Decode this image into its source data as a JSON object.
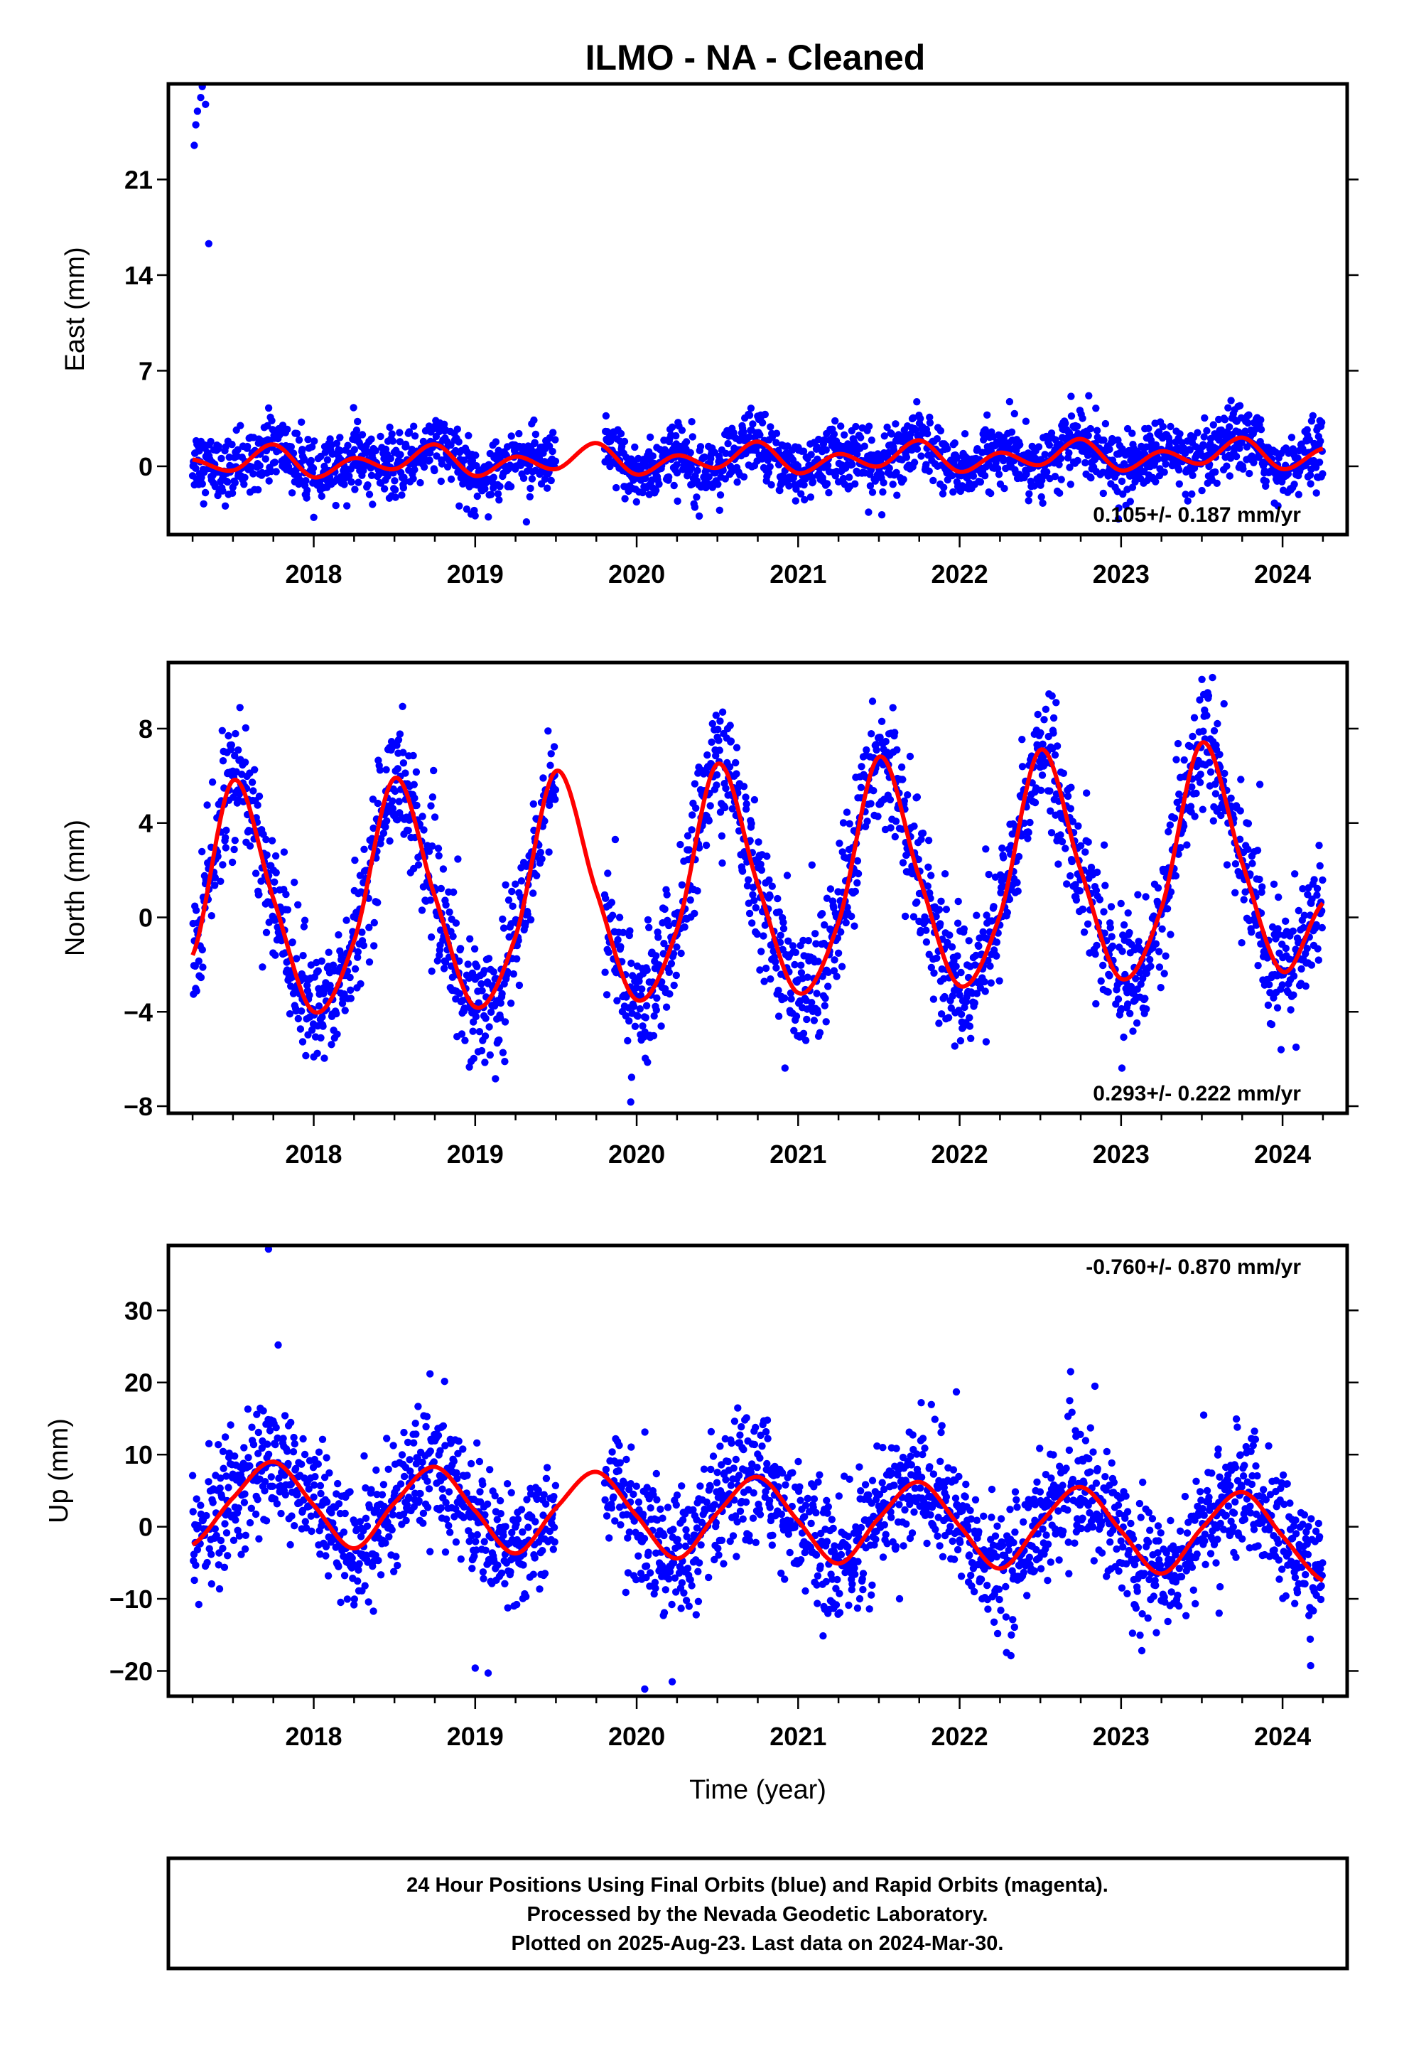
{
  "title": "ILMO  - NA - Cleaned",
  "colors": {
    "final_orbits": "#0000ff",
    "model": "#ff0000",
    "frame": "#000000"
  },
  "footer": {
    "lines": [
      "24 Hour Positions Using Final Orbits (blue) and Rapid Orbits (magenta).",
      "Processed by the Nevada Geodetic Laboratory.",
      "Plotted on 2025-Aug-23. Last data on 2024-Mar-30."
    ]
  },
  "chart_data": [
    {
      "type": "scatter",
      "component": "east",
      "ylabel": "East (mm)",
      "xlabel": "",
      "xlim": [
        2017.1,
        2024.4
      ],
      "ylim": [
        -5,
        28
      ],
      "xticks": [
        2018,
        2019,
        2020,
        2021,
        2022,
        2023,
        2024
      ],
      "yticks": [
        0,
        7,
        14,
        21
      ],
      "rate_label": "0.105+/- 0.187 mm/yr",
      "rate_position": "bottom-right",
      "data_start": 2017.25,
      "data_end": 2024.25,
      "data_gap": [
        2019.5,
        2019.8
      ],
      "outliers": [
        [
          2017.26,
          23.5
        ],
        [
          2017.27,
          25.0
        ],
        [
          2017.28,
          26.0
        ],
        [
          2017.3,
          27.0
        ],
        [
          2017.31,
          27.8
        ],
        [
          2017.33,
          26.5
        ],
        [
          2017.35,
          16.3
        ]
      ],
      "model": {
        "x": [
          2017.25,
          2017.5,
          2017.75,
          2018.0,
          2018.25,
          2018.5,
          2018.75,
          2019.0,
          2019.25,
          2019.5,
          2019.75,
          2020.0,
          2020.25,
          2020.5,
          2020.75,
          2021.0,
          2021.25,
          2021.5,
          2021.75,
          2022.0,
          2022.25,
          2022.5,
          2022.75,
          2023.0,
          2023.25,
          2023.5,
          2023.75,
          2024.0,
          2024.25
        ],
        "y": [
          0.5,
          -0.3,
          1.6,
          -0.8,
          0.6,
          -0.2,
          1.6,
          -0.7,
          0.7,
          -0.2,
          1.7,
          -0.6,
          0.8,
          -0.1,
          1.8,
          -0.5,
          0.9,
          0.0,
          1.9,
          -0.4,
          1.0,
          0.1,
          2.0,
          -0.3,
          1.1,
          0.2,
          2.1,
          -0.2,
          1.3
        ]
      }
    },
    {
      "type": "scatter",
      "component": "north",
      "ylabel": "North (mm)",
      "xlabel": "",
      "xlim": [
        2017.1,
        2024.4
      ],
      "ylim": [
        -8.3,
        10.8
      ],
      "xticks": [
        2018,
        2019,
        2020,
        2021,
        2022,
        2023,
        2024
      ],
      "yticks": [
        -8,
        -4,
        0,
        4,
        8
      ],
      "rate_label": "0.293+/- 0.222 mm/yr",
      "rate_position": "bottom-right",
      "data_start": 2017.25,
      "data_end": 2024.25,
      "data_gap": [
        2019.5,
        2019.8
      ],
      "outliers": [],
      "model": {
        "x": [
          2017.25,
          2017.5,
          2017.75,
          2018.0,
          2018.25,
          2018.5,
          2018.75,
          2019.0,
          2019.25,
          2019.5,
          2019.75,
          2020.0,
          2020.25,
          2020.5,
          2020.75,
          2021.0,
          2021.25,
          2021.5,
          2021.75,
          2022.0,
          2022.25,
          2022.5,
          2022.75,
          2023.0,
          2023.25,
          2023.5,
          2023.75,
          2024.0,
          2024.25
        ],
        "y": [
          -1.6,
          5.8,
          0.8,
          -4.0,
          -1.0,
          5.9,
          0.9,
          -3.8,
          -0.8,
          6.2,
          1.1,
          -3.5,
          -0.5,
          6.5,
          1.4,
          -3.2,
          -0.2,
          6.8,
          1.7,
          -2.9,
          0.1,
          7.1,
          2.0,
          -2.6,
          0.4,
          7.4,
          2.3,
          -2.3,
          0.6
        ]
      }
    },
    {
      "type": "scatter",
      "component": "up",
      "ylabel": "Up (mm)",
      "xlabel": "Time (year)",
      "xlim": [
        2017.1,
        2024.4
      ],
      "ylim": [
        -23.5,
        39
      ],
      "xticks": [
        2018,
        2019,
        2020,
        2021,
        2022,
        2023,
        2024
      ],
      "yticks": [
        -20,
        -10,
        0,
        10,
        20,
        30
      ],
      "rate_label": "-0.760+/- 0.870 mm/yr",
      "rate_position": "top-right",
      "data_start": 2017.25,
      "data_end": 2024.25,
      "data_gap": [
        2019.5,
        2019.8
      ],
      "outliers": [
        [
          2017.72,
          38.5
        ],
        [
          2017.78,
          25.2
        ],
        [
          2018.72,
          21.2
        ],
        [
          2021.98,
          18.7
        ],
        [
          2019.0,
          -19.6
        ],
        [
          2019.08,
          -20.3
        ],
        [
          2020.22,
          -21.5
        ],
        [
          2020.05,
          -22.5
        ]
      ],
      "model": {
        "x": [
          2017.25,
          2017.5,
          2017.75,
          2018.0,
          2018.25,
          2018.5,
          2018.75,
          2019.0,
          2019.25,
          2019.5,
          2019.75,
          2020.0,
          2020.25,
          2020.5,
          2020.75,
          2021.0,
          2021.25,
          2021.5,
          2021.75,
          2022.0,
          2022.25,
          2022.5,
          2022.75,
          2023.0,
          2023.25,
          2023.5,
          2023.75,
          2024.0,
          2024.25
        ],
        "y": [
          -2.5,
          4.0,
          9.0,
          3.0,
          -3.0,
          3.3,
          8.3,
          2.2,
          -3.7,
          2.6,
          7.6,
          1.5,
          -4.4,
          1.9,
          6.9,
          0.8,
          -5.1,
          1.2,
          6.2,
          0.1,
          -5.8,
          0.5,
          5.5,
          -0.6,
          -6.5,
          -0.2,
          4.8,
          -1.3,
          -7.5
        ]
      }
    }
  ]
}
